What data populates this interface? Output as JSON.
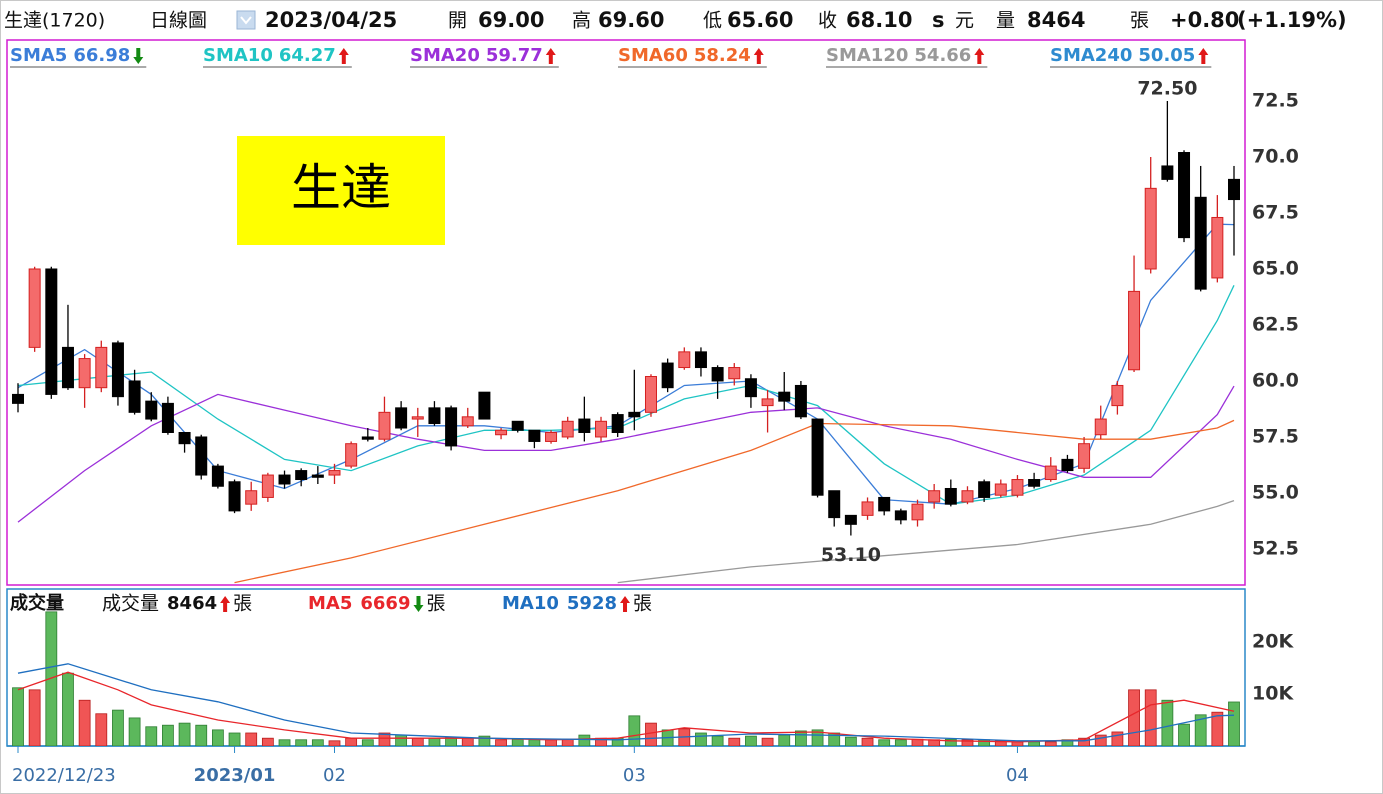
{
  "header": {
    "name": "生達(1720)",
    "chart_type": "日線圖",
    "date": "2023/04/25",
    "open_label": "開",
    "open": "69.00",
    "high_label": "高",
    "high": "69.60",
    "low_label": "低",
    "low": "65.60",
    "close_label": "收",
    "close": "68.10",
    "s_label": "s",
    "unit": "元",
    "volume_label": "量",
    "volume": "8464",
    "volume_unit": "張",
    "change": "+0.80",
    "change_pct": "(+1.19%)"
  },
  "stock_tag": "生達",
  "chart_data": {
    "type": "candlestick",
    "categories": [
      "2022/12/23",
      null,
      null,
      null,
      null,
      null,
      null,
      null,
      null,
      null,
      null,
      null,
      null,
      "2023/01",
      null,
      null,
      null,
      null,
      null,
      "02",
      null,
      null,
      null,
      null,
      null,
      null,
      null,
      null,
      null,
      null,
      null,
      null,
      null,
      null,
      null,
      null,
      null,
      "03",
      null,
      null,
      null,
      null,
      null,
      null,
      null,
      null,
      null,
      null,
      null,
      null,
      null,
      null,
      null,
      null,
      null,
      null,
      null,
      null,
      null,
      null,
      "04",
      null,
      null,
      null,
      null,
      null,
      null,
      null,
      null,
      null,
      null,
      null,
      null,
      null
    ],
    "open": [
      59.4,
      61.5,
      65.0,
      61.5,
      59.7,
      59.7,
      61.7,
      60.0,
      59.1,
      59.0,
      57.7,
      57.5,
      56.2,
      55.5,
      54.5,
      54.8,
      55.8,
      56.0,
      55.8,
      55.8,
      56.2,
      57.5,
      57.4,
      58.8,
      58.3,
      58.8,
      58.8,
      58.0,
      59.5,
      57.6,
      58.2,
      57.8,
      57.3,
      57.5,
      58.3,
      57.5,
      58.5,
      58.6,
      58.6,
      60.8,
      60.6,
      61.3,
      60.6,
      60.1,
      60.1,
      58.9,
      59.5,
      59.8,
      58.3,
      55.1,
      54.0,
      54.0,
      54.8,
      54.2,
      53.8,
      54.6,
      55.2,
      54.6,
      55.5,
      54.9,
      54.9,
      55.6,
      55.6,
      56.5,
      56.1,
      57.6,
      58.9,
      60.5,
      65.0,
      69.6,
      70.2,
      68.2,
      64.6,
      69.0
    ],
    "high": [
      59.9,
      65.1,
      65.1,
      63.4,
      61.2,
      61.8,
      61.8,
      60.5,
      59.5,
      59.3,
      57.7,
      57.6,
      56.3,
      55.6,
      55.5,
      55.9,
      56.0,
      56.1,
      56.2,
      56.3,
      57.3,
      57.9,
      59.3,
      59.1,
      58.8,
      59.1,
      58.9,
      58.8,
      59.5,
      57.9,
      58.2,
      57.8,
      57.8,
      58.4,
      59.3,
      58.4,
      58.6,
      60.5,
      60.3,
      61.0,
      61.5,
      61.5,
      60.7,
      60.8,
      60.3,
      59.6,
      60.4,
      60.0,
      58.3,
      55.1,
      54.0,
      54.8,
      54.8,
      54.3,
      54.7,
      55.4,
      55.6,
      55.3,
      55.6,
      55.6,
      55.8,
      55.9,
      56.6,
      56.7,
      57.5,
      58.9,
      60.0,
      65.6,
      70.0,
      72.5,
      70.3,
      69.6,
      68.3,
      69.6
    ],
    "low": [
      58.6,
      61.3,
      59.2,
      59.6,
      58.8,
      59.5,
      58.9,
      58.5,
      58.2,
      57.6,
      56.8,
      55.6,
      55.2,
      54.1,
      54.2,
      54.6,
      55.2,
      55.3,
      55.4,
      55.4,
      56.1,
      57.3,
      57.3,
      57.8,
      57.5,
      58.0,
      56.9,
      57.9,
      58.3,
      57.4,
      57.7,
      57.0,
      57.2,
      57.4,
      57.3,
      57.3,
      57.5,
      57.8,
      58.4,
      59.5,
      60.5,
      60.2,
      59.2,
      59.8,
      58.8,
      57.7,
      58.7,
      58.3,
      54.8,
      53.5,
      53.1,
      53.8,
      54.0,
      53.6,
      53.5,
      54.3,
      54.4,
      54.5,
      54.6,
      54.8,
      54.8,
      55.2,
      55.5,
      55.9,
      55.9,
      57.4,
      58.5,
      60.4,
      64.8,
      68.9,
      66.2,
      64.0,
      64.4,
      65.6
    ],
    "close": [
      59.0,
      65.0,
      59.4,
      59.7,
      61.0,
      61.5,
      59.3,
      58.6,
      58.3,
      57.7,
      57.2,
      55.8,
      55.3,
      54.2,
      55.1,
      55.8,
      55.4,
      55.6,
      55.7,
      56.0,
      57.2,
      57.4,
      58.6,
      57.9,
      58.4,
      58.1,
      57.1,
      58.4,
      58.3,
      57.8,
      57.8,
      57.3,
      57.7,
      58.2,
      57.7,
      58.2,
      57.7,
      58.4,
      60.2,
      59.7,
      61.3,
      60.6,
      60.0,
      60.6,
      59.3,
      59.2,
      59.1,
      58.4,
      54.9,
      53.9,
      53.6,
      54.6,
      54.2,
      53.8,
      54.5,
      55.1,
      54.5,
      55.1,
      54.8,
      55.4,
      55.6,
      55.3,
      56.2,
      56.0,
      57.2,
      58.3,
      59.8,
      64.0,
      68.6,
      69.0,
      66.4,
      64.1,
      67.3,
      68.1
    ],
    "up_color": "#f46b6b",
    "down_color": "#000000",
    "ylim": [
      50.9,
      75.25
    ],
    "yticks": [
      {
        "value": 52.5,
        "label": "52.5"
      },
      {
        "value": 55,
        "label": "55.0"
      },
      57.5,
      {
        "value": 60,
        "label": "60.0"
      },
      62.5,
      {
        "value": 65,
        "label": "65.0"
      },
      67.5,
      {
        "value": 70,
        "label": "70.0"
      },
      72.5
    ],
    "annotations": [
      {
        "label": "72.50",
        "x": 69,
        "value": 72.5,
        "position": "above"
      },
      {
        "label": "53.10",
        "x": 50,
        "value": 53.1,
        "position": "below"
      }
    ],
    "overlays": [
      {
        "name": "SMA5",
        "color": "#3b7dd8",
        "trend": "down",
        "x": [
          0,
          4,
          8,
          12,
          16,
          20,
          24,
          28,
          32,
          36,
          40,
          44,
          48,
          52,
          56,
          60,
          64,
          68,
          72,
          73
        ],
        "values": [
          59.7,
          61.4,
          59.4,
          56.0,
          55.2,
          56.5,
          58.0,
          58.0,
          57.7,
          58.0,
          59.8,
          60.0,
          58.3,
          54.7,
          54.5,
          55.2,
          56.3,
          63.6,
          67.0,
          66.98
        ]
      },
      {
        "name": "SMA10",
        "color": "#1fc4c4",
        "trend": "up",
        "x": [
          0,
          4,
          8,
          12,
          16,
          20,
          24,
          28,
          32,
          36,
          40,
          44,
          48,
          52,
          56,
          60,
          64,
          68,
          72,
          73
        ],
        "values": [
          59.8,
          60.1,
          60.4,
          58.3,
          56.5,
          56.0,
          57.1,
          57.8,
          57.8,
          57.9,
          59.2,
          59.8,
          58.9,
          56.3,
          54.5,
          54.9,
          55.8,
          57.8,
          62.7,
          64.27
        ]
      },
      {
        "name": "SMA20",
        "color": "#9b30d9",
        "trend": "up",
        "x": [
          0,
          4,
          8,
          12,
          16,
          20,
          24,
          28,
          32,
          36,
          40,
          44,
          48,
          52,
          56,
          60,
          64,
          68,
          72,
          73
        ],
        "values": [
          53.7,
          56.0,
          58.0,
          59.4,
          58.7,
          58.0,
          57.4,
          56.9,
          56.9,
          57.4,
          58.0,
          58.6,
          58.8,
          58.0,
          57.4,
          56.5,
          55.7,
          55.7,
          58.5,
          59.77
        ]
      },
      {
        "name": "SMA60",
        "color": "#f0682a",
        "trend": "up",
        "x": [
          13,
          20,
          28,
          36,
          44,
          48,
          56,
          64,
          68,
          72,
          73
        ],
        "values": [
          51.0,
          52.1,
          53.6,
          55.1,
          56.9,
          58.1,
          58.0,
          57.4,
          57.4,
          57.9,
          58.24
        ]
      },
      {
        "name": "SMA120",
        "color": "#999999",
        "trend": "up",
        "x": [
          36,
          44,
          52,
          60,
          68,
          72,
          73
        ],
        "values": [
          51.0,
          51.7,
          52.2,
          52.7,
          53.6,
          54.4,
          54.66
        ]
      },
      {
        "name": "SMA240",
        "color": "#2e8bd0",
        "trend": "up",
        "x": [
          73
        ],
        "values": [
          50.05
        ]
      }
    ],
    "volume": {
      "title": "成交量",
      "name": "成交量",
      "unit": "張",
      "trend": "up",
      "values": [
        11200,
        10800,
        25800,
        14000,
        8800,
        6200,
        6900,
        5400,
        3700,
        4000,
        4400,
        4000,
        3100,
        2500,
        2500,
        1500,
        1200,
        1200,
        1200,
        1000,
        1500,
        1200,
        2500,
        2100,
        1500,
        1500,
        1700,
        1500,
        1900,
        1200,
        1300,
        1200,
        1200,
        1300,
        2100,
        1500,
        1500,
        5800,
        4400,
        3100,
        3300,
        2500,
        1900,
        1500,
        1900,
        1500,
        2100,
        2900,
        3100,
        2500,
        1700,
        1500,
        1200,
        1200,
        1300,
        1200,
        1300,
        1200,
        1200,
        1000,
        800,
        800,
        800,
        1200,
        1500,
        2100,
        2700,
        10800,
        10800,
        8800,
        4200,
        6000,
        6500,
        8464
      ],
      "up_color": "#f05555",
      "down_color": "#5cb85c",
      "ylim": [
        0,
        30000
      ],
      "yticks": [
        {
          "value": 10000,
          "label": "10K"
        },
        {
          "value": 20000,
          "label": "20K"
        }
      ],
      "series": [
        {
          "name": "MA5",
          "color": "#e8262b",
          "trend": "down",
          "x": [
            0,
            3,
            6,
            8,
            12,
            16,
            20,
            24,
            28,
            32,
            36,
            40,
            44,
            48,
            52,
            56,
            60,
            64,
            68,
            70,
            73
          ],
          "values": [
            10800,
            14200,
            10800,
            7900,
            5000,
            3100,
            1500,
            1500,
            1500,
            1200,
            1500,
            3500,
            2500,
            2700,
            1500,
            1000,
            800,
            1200,
            7900,
            8800,
            6669
          ]
        },
        {
          "name": "MA10",
          "color": "#1f6fc0",
          "trend": "up",
          "x": [
            0,
            3,
            8,
            12,
            16,
            20,
            28,
            36,
            44,
            52,
            60,
            64,
            68,
            72,
            73
          ],
          "values": [
            14000,
            15800,
            10800,
            8500,
            5000,
            2500,
            1500,
            1200,
            2300,
            1900,
            1000,
            1000,
            3100,
            5800,
            5928
          ]
        }
      ]
    }
  }
}
